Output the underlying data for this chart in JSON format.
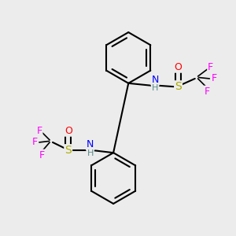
{
  "bg_color": "#ececec",
  "atom_colors": {
    "C": "#000000",
    "H": "#5a8a8a",
    "N": "#0000ff",
    "O": "#ff0000",
    "S": "#aaaa00",
    "F": "#ff00ff"
  },
  "figsize": [
    3.0,
    3.0
  ],
  "dpi": 100
}
